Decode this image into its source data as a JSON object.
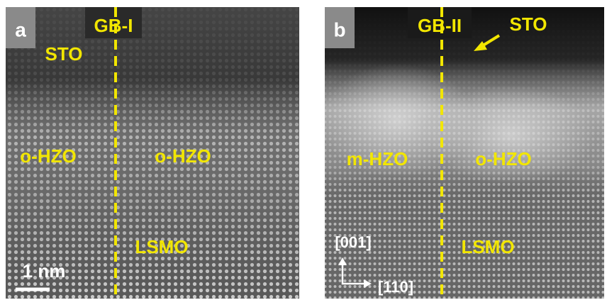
{
  "panels": [
    {
      "label": "a",
      "boundary": "GB-I",
      "annotations": [
        "STO",
        "o-HZO",
        "o-HZO",
        "LSMO"
      ],
      "scale_bar": "1 nm"
    },
    {
      "label": "b",
      "boundary": "GB-II",
      "annotations": [
        "STO",
        "m-HZO",
        "o-HZO",
        "LSMO"
      ],
      "axes": [
        "[001]",
        "[110]"
      ]
    }
  ]
}
